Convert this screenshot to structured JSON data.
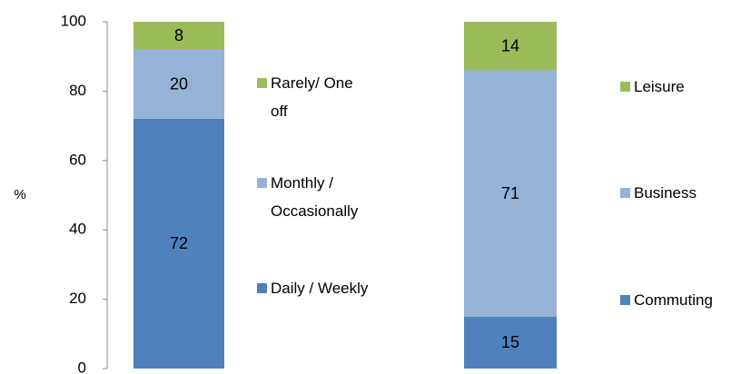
{
  "chart_data": [
    {
      "type": "stacked_bar",
      "y_label": "%",
      "categories": [
        null
      ],
      "ylim": [
        0,
        100
      ],
      "yticks": [
        0,
        20,
        40,
        60,
        80,
        100
      ],
      "series": [
        {
          "name": "Daily / Weekly",
          "color": "#4f81bd",
          "values": [
            72
          ]
        },
        {
          "name": "Monthly / Occasionally",
          "color": "#95b3d7",
          "values": [
            20
          ]
        },
        {
          "name": "Rarely/ One off",
          "color": "#9bbb59",
          "values": [
            8
          ]
        }
      ]
    },
    {
      "type": "stacked_bar",
      "categories": [
        null
      ],
      "ylim": [
        0,
        100
      ],
      "series": [
        {
          "name": "Commuting",
          "color": "#4f81bd",
          "values": [
            15
          ]
        },
        {
          "name": "Business",
          "color": "#95b3d7",
          "values": [
            71
          ]
        },
        {
          "name": "Leisure",
          "color": "#9bbb59",
          "values": [
            14
          ]
        }
      ]
    }
  ]
}
